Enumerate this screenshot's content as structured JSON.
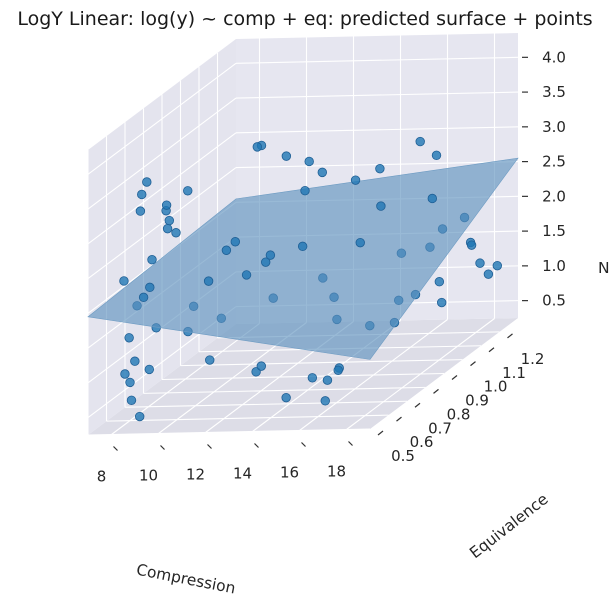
{
  "chart_data": {
    "type": "scatter",
    "title": "LogY Linear: log(y) ~ comp + eq: predicted surface + points",
    "xlabel": "Compression",
    "ylabel": "Equivalence",
    "zlabel": "N",
    "x_ticks": [
      "8",
      "10",
      "12",
      "14",
      "16",
      "18"
    ],
    "y_ticks": [
      "0.5",
      "0.6",
      "0.7",
      "0.8",
      "0.9",
      "1.0",
      "1.1",
      "1.2"
    ],
    "z_ticks": [
      "0.5",
      "1.0",
      "1.5",
      "2.0",
      "2.5",
      "3.0",
      "3.5",
      "4.0"
    ],
    "xlim": [
      7,
      19
    ],
    "ylim": [
      0.5,
      1.3
    ],
    "zlim": [
      0.25,
      4.35
    ],
    "surface": {
      "type": "plane",
      "corners_z": [
        1.95,
        1.25,
        2.05,
        2.55
      ]
    },
    "points": [
      [
        8.5,
        0.6,
        3.5
      ],
      [
        8.4,
        0.64,
        3.6
      ],
      [
        8.6,
        0.58,
        3.3
      ],
      [
        9.3,
        0.63,
        3.2
      ],
      [
        9.4,
        0.62,
        3.3
      ],
      [
        9.2,
        0.66,
        3.0
      ],
      [
        9.8,
        0.62,
        2.9
      ],
      [
        9.6,
        0.6,
        3.0
      ],
      [
        10.3,
        0.62,
        3.5
      ],
      [
        8.7,
        0.63,
        2.5
      ],
      [
        9.0,
        0.58,
        2.2
      ],
      [
        8.5,
        0.61,
        2.0
      ],
      [
        8.3,
        0.6,
        1.9
      ],
      [
        8.8,
        0.64,
        1.5
      ],
      [
        8.9,
        0.59,
        1.0
      ],
      [
        9.6,
        0.71,
        1.3
      ],
      [
        8.2,
        0.57,
        1.5
      ],
      [
        7.9,
        0.58,
        2.3
      ],
      [
        8.6,
        0.55,
        1.2
      ],
      [
        8.1,
        0.56,
        1.0
      ],
      [
        8.0,
        0.6,
        0.8
      ],
      [
        8.3,
        0.57,
        0.6
      ],
      [
        10.0,
        0.69,
        1.7
      ],
      [
        10.4,
        0.72,
        2.0
      ],
      [
        11.3,
        0.75,
        2.5
      ],
      [
        11.0,
        0.74,
        2.4
      ],
      [
        11.7,
        0.76,
        2.0
      ],
      [
        11.1,
        0.7,
        1.5
      ],
      [
        12.2,
        0.8,
        2.1
      ],
      [
        12.4,
        0.8,
        2.2
      ],
      [
        13.3,
        0.86,
        2.2
      ],
      [
        12.6,
        0.79,
        1.6
      ],
      [
        11.0,
        0.65,
        1.0
      ],
      [
        12.5,
        0.71,
        0.7
      ],
      [
        14.0,
        0.88,
        1.7
      ],
      [
        14.4,
        0.89,
        1.4
      ],
      [
        14.6,
        0.88,
        1.1
      ],
      [
        14.7,
        0.88,
        0.4
      ],
      [
        15.2,
        0.93,
        2.1
      ],
      [
        16.4,
        1.0,
        1.8
      ],
      [
        17.3,
        1.04,
        1.8
      ],
      [
        17.6,
        1.07,
        2.0
      ],
      [
        18.4,
        1.12,
        1.7
      ],
      [
        17.7,
        1.04,
        1.3
      ],
      [
        17.0,
        1.0,
        1.2
      ],
      [
        16.5,
        0.95,
        0.9
      ],
      [
        17.8,
        1.04,
        1.0
      ],
      [
        16.0,
        0.94,
        2.6
      ],
      [
        17.4,
        1.04,
        2.5
      ],
      [
        17.5,
        1.05,
        3.1
      ],
      [
        15.8,
        0.96,
        3.1
      ],
      [
        15.0,
        0.93,
        3.0
      ],
      [
        13.9,
        0.89,
        3.2
      ],
      [
        13.4,
        0.86,
        3.0
      ],
      [
        13.5,
        0.87,
        3.4
      ],
      [
        12.0,
        0.78,
        3.8
      ],
      [
        12.1,
        0.79,
        3.8
      ],
      [
        13.0,
        0.81,
        3.6
      ],
      [
        17.2,
        1.0,
        3.4
      ],
      [
        18.3,
        1.1,
        2.1
      ],
      [
        18.6,
        1.1,
        1.7
      ],
      [
        19.0,
        1.14,
        1.2
      ],
      [
        18.8,
        1.12,
        1.4
      ],
      [
        19.3,
        1.15,
        1.3
      ],
      [
        16.0,
        0.88,
        1.0
      ],
      [
        16.6,
        0.96,
        1.2
      ],
      [
        14.5,
        0.76,
        0.5
      ],
      [
        15.3,
        0.74,
        0.5
      ],
      [
        15.6,
        0.76,
        0.6
      ],
      [
        12.8,
        0.7,
        0.8
      ],
      [
        9.2,
        0.5,
        0.5
      ],
      [
        13.7,
        0.72,
        0.3
      ],
      [
        15.6,
        0.69,
        0.3
      ]
    ]
  }
}
